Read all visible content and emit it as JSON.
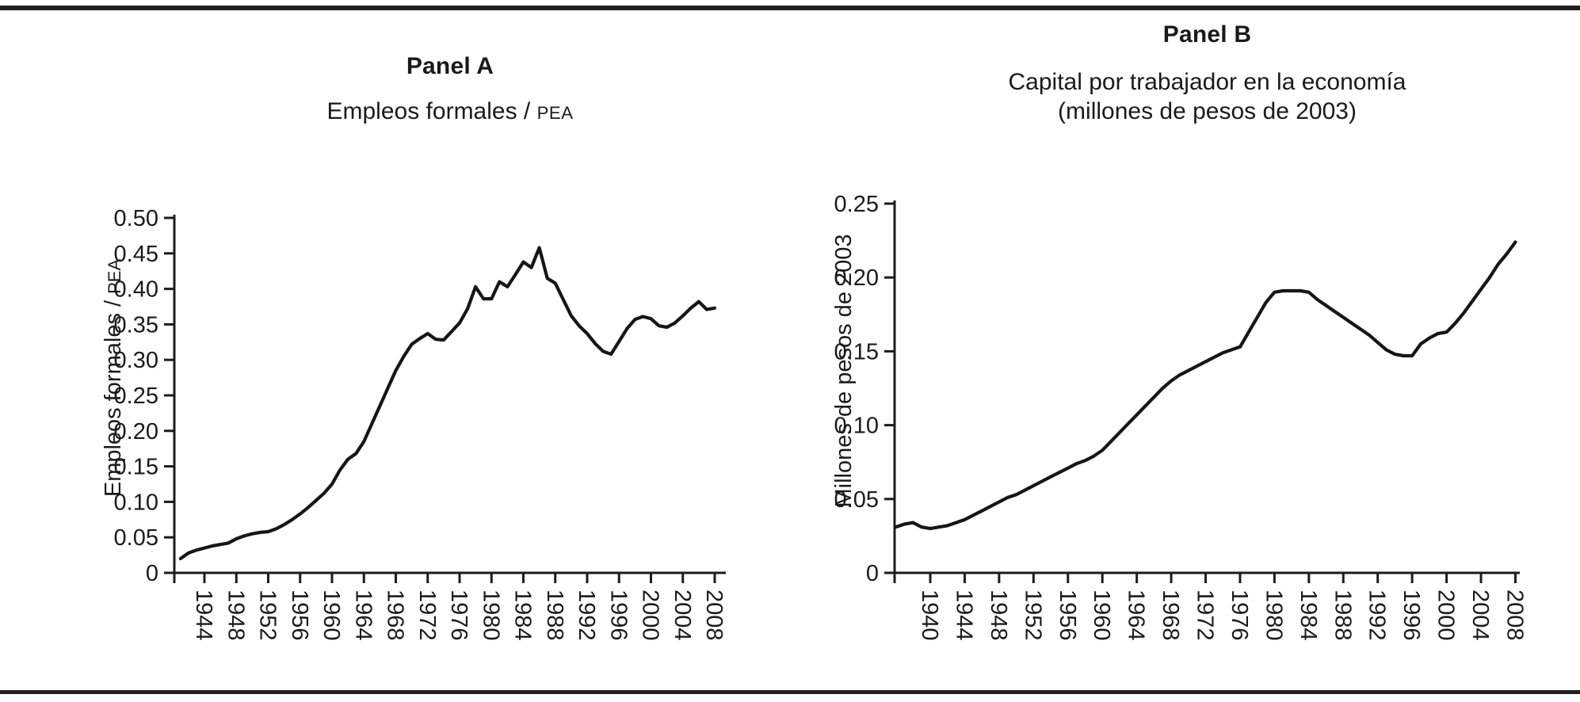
{
  "page": {
    "background": "#ffffff",
    "rule_color": "#231f20",
    "line_color": "#161616",
    "axis_color": "#1c1c1c"
  },
  "chart_data": [
    {
      "type": "line",
      "panel_label": "Panel A",
      "subtitle_lines": [
        [
          {
            "text": "Empleos formales / "
          },
          {
            "text": "PEA",
            "small_caps": true
          }
        ]
      ],
      "ylabel_parts": [
        {
          "text": "Empleos formales / "
        },
        {
          "text": "PEA",
          "small_caps": true
        }
      ],
      "xlabel": "",
      "ylim": [
        0,
        0.5
      ],
      "x_range_years": [
        1940,
        2009
      ],
      "grid": false,
      "legend": "none",
      "y_ticks": [
        {
          "value": 0.5,
          "label": "0.50"
        },
        {
          "value": 0.45,
          "label": "0.45"
        },
        {
          "value": 0.4,
          "label": "0.40"
        },
        {
          "value": 0.35,
          "label": "0.35"
        },
        {
          "value": 0.3,
          "label": "0.30"
        },
        {
          "value": 0.25,
          "label": "0.25"
        },
        {
          "value": 0.2,
          "label": "0.20"
        },
        {
          "value": 0.15,
          "label": "0.15"
        },
        {
          "value": 0.1,
          "label": "0.10"
        },
        {
          "value": 0.05,
          "label": "0.05"
        },
        {
          "value": 0,
          "label": "0"
        }
      ],
      "x_tick_years": [
        1944,
        1948,
        1952,
        1956,
        1960,
        1964,
        1968,
        1972,
        1976,
        1980,
        1984,
        1988,
        1992,
        1996,
        2000,
        2004,
        2008
      ],
      "series": [
        {
          "name": "Empleos formales / PEA",
          "x_start": 1941,
          "x_step": 1,
          "y": [
            0.02,
            0.028,
            0.032,
            0.035,
            0.038,
            0.04,
            0.042,
            0.048,
            0.052,
            0.055,
            0.057,
            0.058,
            0.062,
            0.068,
            0.075,
            0.083,
            0.092,
            0.102,
            0.112,
            0.125,
            0.145,
            0.16,
            0.168,
            0.185,
            0.21,
            0.235,
            0.26,
            0.285,
            0.305,
            0.322,
            0.33,
            0.337,
            0.329,
            0.328,
            0.34,
            0.352,
            0.372,
            0.403,
            0.386,
            0.386,
            0.41,
            0.403,
            0.42,
            0.438,
            0.43,
            0.458,
            0.415,
            0.408,
            0.385,
            0.362,
            0.348,
            0.337,
            0.323,
            0.312,
            0.308,
            0.326,
            0.344,
            0.357,
            0.361,
            0.358,
            0.348,
            0.346,
            0.352,
            0.362,
            0.373,
            0.382,
            0.371,
            0.373
          ]
        }
      ]
    },
    {
      "type": "line",
      "panel_label": "Panel B",
      "subtitle_lines": [
        [
          {
            "text": "Capital por trabajador en la economía"
          }
        ],
        [
          {
            "text": "(millones de pesos de 2003)"
          }
        ]
      ],
      "ylabel_parts": [
        {
          "text": "Millones de pesos de 2003"
        }
      ],
      "xlabel": "",
      "ylim": [
        0,
        0.25
      ],
      "x_range_years": [
        1936,
        2009
      ],
      "grid": false,
      "legend": "none",
      "y_ticks": [
        {
          "value": 0.25,
          "label": "0.25"
        },
        {
          "value": 0.2,
          "label": "0.20"
        },
        {
          "value": 0.15,
          "label": "0.15"
        },
        {
          "value": 0.1,
          "label": "0.10"
        },
        {
          "value": 0.05,
          "label": "0.05"
        },
        {
          "value": 0,
          "label": "0"
        }
      ],
      "x_tick_years": [
        1940,
        1944,
        1948,
        1952,
        1956,
        1960,
        1964,
        1968,
        1972,
        1976,
        1980,
        1984,
        1988,
        1992,
        1996,
        2000,
        2004,
        2008
      ],
      "series": [
        {
          "name": "Capital por trabajador (millones de pesos de 2003)",
          "x_start": 1936,
          "x_step": 1,
          "y": [
            0.031,
            0.033,
            0.034,
            0.031,
            0.03,
            0.031,
            0.032,
            0.034,
            0.036,
            0.039,
            0.042,
            0.045,
            0.048,
            0.051,
            0.053,
            0.056,
            0.059,
            0.062,
            0.065,
            0.068,
            0.071,
            0.074,
            0.076,
            0.079,
            0.083,
            0.089,
            0.095,
            0.101,
            0.107,
            0.113,
            0.119,
            0.125,
            0.13,
            0.134,
            0.137,
            0.14,
            0.143,
            0.146,
            0.149,
            0.151,
            0.153,
            0.163,
            0.173,
            0.183,
            0.19,
            0.191,
            0.191,
            0.191,
            0.19,
            0.185,
            0.181,
            0.177,
            0.173,
            0.169,
            0.165,
            0.161,
            0.156,
            0.151,
            0.148,
            0.147,
            0.147,
            0.155,
            0.159,
            0.162,
            0.163,
            0.169,
            0.176,
            0.184,
            0.192,
            0.2,
            0.209,
            0.216,
            0.224
          ]
        }
      ]
    }
  ]
}
